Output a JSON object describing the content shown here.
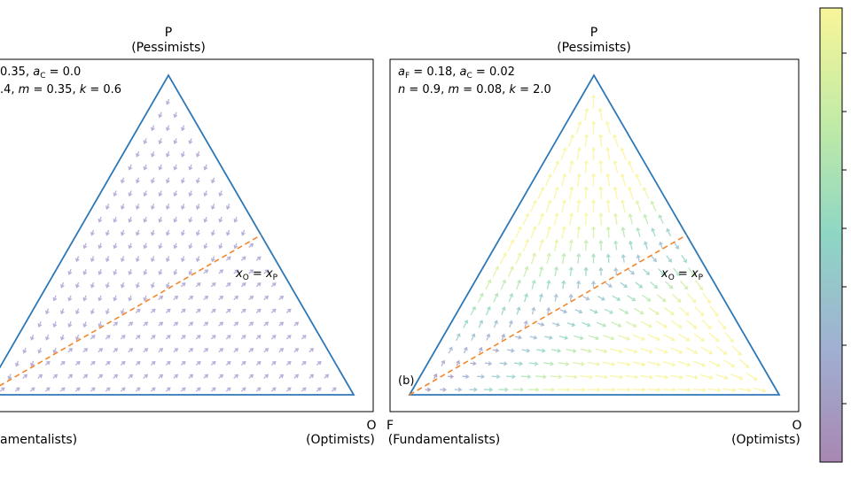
{
  "left_panel": {
    "top_label": "P",
    "top_sublabel": "(Pessimists)",
    "right_label": "O",
    "right_sublabel": "(Optimists)",
    "left_sublabel": "amentalists)",
    "params_line1": [
      {
        "t": "0.35, "
      },
      {
        "t": "a",
        "s": "C"
      },
      {
        "t": " = 0.0"
      }
    ],
    "params_line2": [
      {
        "t": ".4, "
      },
      {
        "t": "m",
        "i": true
      },
      {
        "t": " = 0.35, "
      },
      {
        "t": "k",
        "i": true
      },
      {
        "t": " = 0.6"
      }
    ],
    "line_label": [
      {
        "t": "x",
        "s": "O"
      },
      {
        "t": " = "
      },
      {
        "t": "x",
        "s": "P"
      }
    ]
  },
  "right_panel": {
    "top_label": "P",
    "top_sublabel": "(Pessimists)",
    "right_label": "O",
    "right_sublabel": "(Optimists)",
    "left_label": "F",
    "left_sublabel": "(Fundamentalists)",
    "params_line1": [
      {
        "t": "a",
        "s": "F"
      },
      {
        "t": " = 0.18, "
      },
      {
        "t": "a",
        "s": "C"
      },
      {
        "t": " = 0.02"
      }
    ],
    "params_line2": [
      {
        "t": "n",
        "i": true
      },
      {
        "t": " = 0.9, "
      },
      {
        "t": "m",
        "i": true
      },
      {
        "t": " = 0.08, "
      },
      {
        "t": "k",
        "i": true
      },
      {
        "t": " = 2.0"
      }
    ],
    "line_label": [
      {
        "t": "x",
        "s": "O"
      },
      {
        "t": " = "
      },
      {
        "t": "x",
        "s": "P"
      }
    ],
    "panel_label": "(b)"
  }
}
